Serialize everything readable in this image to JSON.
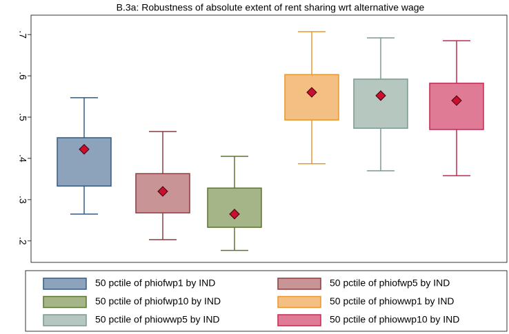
{
  "chart_data": {
    "type": "box",
    "title": "B.3a: Robustness of absolute extent of rent sharing wrt alternative wage",
    "ylim": [
      0.148,
      0.747
    ],
    "yticks": [
      {
        "value": 0.2,
        "label": ".2"
      },
      {
        "value": 0.3,
        "label": ".3"
      },
      {
        "value": 0.4,
        "label": ".4"
      },
      {
        "value": 0.5,
        "label": ".5"
      },
      {
        "value": 0.6,
        "label": ".6"
      },
      {
        "value": 0.7,
        "label": ".7"
      }
    ],
    "mean_color": "#c8102e",
    "series": [
      {
        "name": "50 pctile of phiofwp1 by IND",
        "color": "#8da2bb",
        "edge": "#2f5a82",
        "whisker_high": 0.547,
        "q3": 0.45,
        "q1": 0.333,
        "whisker_low": 0.265,
        "mean": 0.422
      },
      {
        "name": "50 pctile of phiofwp5 by IND",
        "color": "#c99495",
        "edge": "#8c3a3d",
        "whisker_high": 0.465,
        "q3": 0.363,
        "q1": 0.268,
        "whisker_low": 0.203,
        "mean": 0.32
      },
      {
        "name": "50 pctile of phiofwp10 by IND",
        "color": "#a6b587",
        "edge": "#5a7431",
        "whisker_high": 0.405,
        "q3": 0.328,
        "q1": 0.233,
        "whisker_low": 0.177,
        "mean": 0.265
      },
      {
        "name": "50 pctile of phiowwp1 by IND",
        "color": "#f3bf82",
        "edge": "#e8972f",
        "whisker_high": 0.707,
        "q3": 0.603,
        "q1": 0.493,
        "whisker_low": 0.387,
        "mean": 0.56
      },
      {
        "name": "50 pctile of phiowwp5 by IND",
        "color": "#b5c7bf",
        "edge": "#7a9990",
        "whisker_high": 0.692,
        "q3": 0.592,
        "q1": 0.473,
        "whisker_low": 0.37,
        "mean": 0.552
      },
      {
        "name": "50 pctile of phiowwp10 by IND",
        "color": "#df7b94",
        "edge": "#c8254f",
        "whisker_high": 0.685,
        "q3": 0.582,
        "q1": 0.47,
        "whisker_low": 0.358,
        "mean": 0.54
      }
    ]
  }
}
